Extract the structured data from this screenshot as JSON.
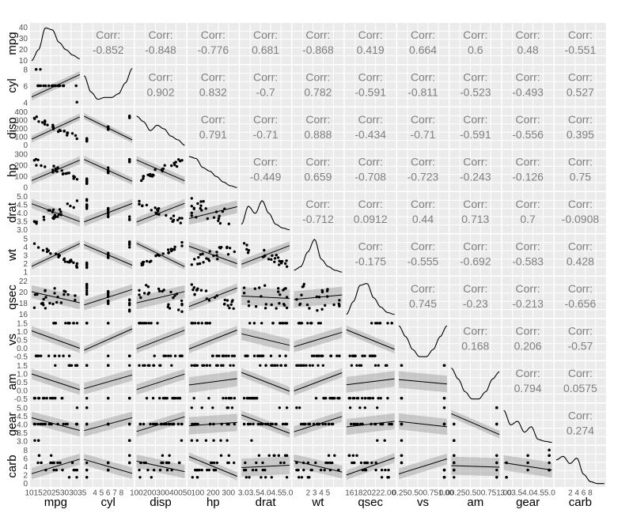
{
  "chart_data": {
    "type": "scatter-matrix",
    "title": "",
    "variables": [
      "mpg",
      "cyl",
      "disp",
      "hp",
      "drat",
      "wt",
      "qsec",
      "vs",
      "am",
      "gear",
      "carb"
    ],
    "corr_label": "Corr:",
    "correlations": [
      [
        "-0.852",
        "-0.848",
        "-0.776",
        "0.681",
        "-0.868",
        "0.419",
        "0.664",
        "0.6",
        "0.48",
        "-0.551"
      ],
      [
        "0.902",
        "0.832",
        "-0.7",
        "0.782",
        "-0.591",
        "-0.811",
        "-0.523",
        "-0.493",
        "0.527"
      ],
      [
        "0.791",
        "-0.71",
        "0.888",
        "-0.434",
        "-0.71",
        "-0.591",
        "-0.556",
        "0.395"
      ],
      [
        "-0.449",
        "0.659",
        "-0.708",
        "-0.723",
        "-0.243",
        "-0.126",
        "0.75"
      ],
      [
        "-0.712",
        "0.0912",
        "0.44",
        "0.713",
        "0.7",
        "-0.0908"
      ],
      [
        "-0.175",
        "-0.555",
        "-0.692",
        "-0.583",
        "0.428"
      ],
      [
        "0.745",
        "-0.23",
        "-0.213",
        "-0.656"
      ],
      [
        "0.168",
        "0.206",
        "-0.57"
      ],
      [
        "0.794",
        "0.0575"
      ],
      [
        "0.274"
      ]
    ],
    "y_tick_labels": {
      "mpg": [
        "40",
        "30",
        "20",
        "10"
      ],
      "cyl": [
        "8",
        "6",
        "4"
      ],
      "disp": [
        "400",
        "300",
        "200",
        "100",
        "0"
      ],
      "hp": [
        "300",
        "200",
        "100",
        "0"
      ],
      "drat": [
        "5.0",
        "4.5",
        "4.0",
        "3.5",
        "3.0"
      ],
      "wt": [
        "5",
        "4",
        "3",
        "2",
        "1"
      ],
      "qsec": [
        "22",
        "20",
        "18",
        "16"
      ],
      "vs": [
        "1.5",
        "1.0",
        "0.5",
        "0.0",
        "-0.5"
      ],
      "am": [
        "1.5",
        "1.0",
        "0.5",
        "0.0",
        "-0.5"
      ],
      "gear": [
        "5.0",
        "4.5",
        "4.0",
        "3.5",
        "3.0"
      ],
      "carb": [
        "8",
        "6",
        "4",
        "2",
        "0"
      ]
    },
    "x_tick_labels": {
      "mpg": "10152025303035",
      "cyl": "4 5 6 7 8",
      "disp": "10020030040050",
      "hp": "100 200 300",
      "drat": "3.03.54.04.55.0",
      "wt": "2 3 4 5",
      "qsec": "161820222.00",
      "vs": "0.250.500.751.00",
      "am": "0.00.250.500.751.00",
      "gear": "3.03.54.04.55.0",
      "carb": "2  4  6  8"
    }
  }
}
